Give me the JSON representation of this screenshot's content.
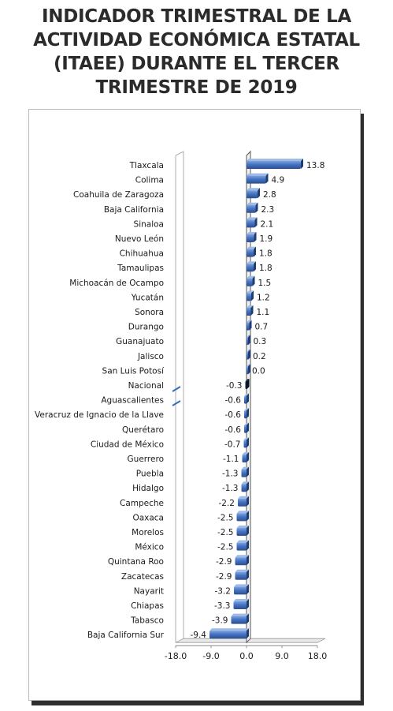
{
  "title_lines": [
    "INDICADOR TRIMESTRAL DE LA",
    "ACTIVIDAD ECONÓMICA ESTATAL",
    "(ITAEE) DURANTE EL TERCER",
    "TRIMESTRE DE 2019"
  ],
  "chart_data": {
    "type": "bar",
    "orientation": "horizontal",
    "categories": [
      "Tlaxcala",
      "Colima",
      "Coahuila de Zaragoza",
      "Baja California",
      "Sinaloa",
      "Nuevo León",
      "Chihuahua",
      "Tamaulipas",
      "Michoacán de Ocampo",
      "Yucatán",
      "Sonora",
      "Durango",
      "Guanajuato",
      "Jalisco",
      "San Luis Potosí",
      "Nacional",
      "Aguascalientes",
      "Veracruz de Ignacio de la Llave",
      "Querétaro",
      "Ciudad de México",
      "Guerrero",
      "Puebla",
      "Hidalgo",
      "Campeche",
      "Oaxaca",
      "Morelos",
      "México",
      "Quintana Roo",
      "Zacatecas",
      "Nayarit",
      "Chiapas",
      "Tabasco",
      "Baja California Sur"
    ],
    "values": [
      13.8,
      4.9,
      2.8,
      2.3,
      2.1,
      1.9,
      1.8,
      1.8,
      1.5,
      1.2,
      1.1,
      0.7,
      0.3,
      0.2,
      0.0,
      -0.3,
      -0.6,
      -0.6,
      -0.6,
      -0.7,
      -1.1,
      -1.3,
      -1.3,
      -2.2,
      -2.5,
      -2.5,
      -2.5,
      -2.9,
      -2.9,
      -3.2,
      -3.3,
      -3.9,
      -9.4
    ],
    "value_labels": [
      "13.8",
      "4.9",
      "2.8",
      "2.3",
      "2.1",
      "1.9",
      "1.8",
      "1.8",
      "1.5",
      "1.2",
      "1.1",
      "0.7",
      "0.3",
      "0.2",
      "0.0",
      "-0.3",
      "-0.6",
      "-0.6",
      "-0.6",
      "-0.7",
      "-1.1",
      "-1.3",
      "-1.3",
      "-2.2",
      "-2.5",
      "-2.5",
      "-2.5",
      "-2.9",
      "-2.9",
      "-3.2",
      "-3.3",
      "-3.9",
      "-9.4"
    ],
    "highlight_category": "Nacional",
    "xlim": [
      -18.0,
      18.0
    ],
    "x_ticks": [
      "-18.0",
      "-9.0",
      "0.0",
      "9.0",
      "18.0"
    ],
    "x_tick_values": [
      -18,
      -9,
      0,
      9,
      18
    ],
    "grid": false,
    "colors": {
      "bar": "#4472c4",
      "bar_dark": "#2c4f8c",
      "highlight": "#0f1b33",
      "axis": "#555555"
    }
  }
}
